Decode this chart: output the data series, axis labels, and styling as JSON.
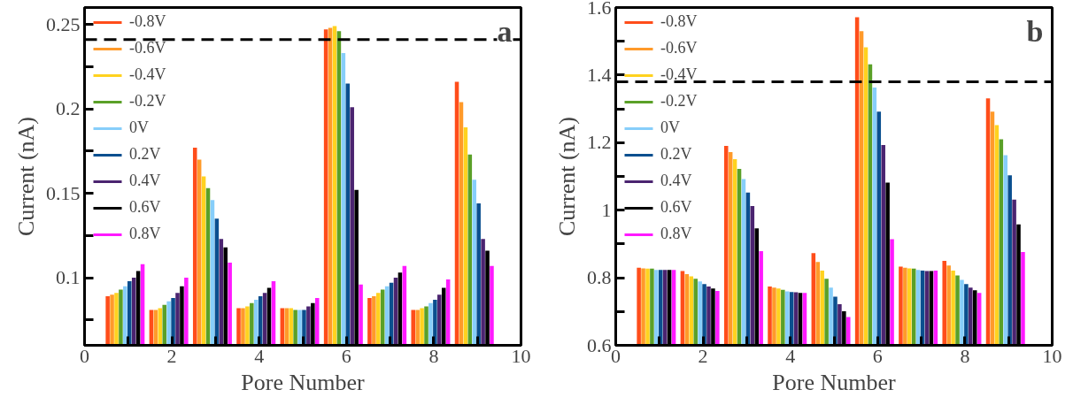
{
  "chart_data": [
    {
      "type": "bar",
      "xlabel": "Pore Number",
      "ylabel": "Current (nA)",
      "annotations": [
        "a"
      ],
      "legend": "top left",
      "x": [
        1,
        2,
        3,
        4,
        5,
        6,
        7,
        8,
        9
      ],
      "xlim": [
        0,
        10
      ],
      "ylim": [
        0.06,
        0.26
      ],
      "xticks": [
        0,
        {
          "value": 1,
          "label": null
        },
        2,
        {
          "value": 3,
          "label": null
        },
        4,
        {
          "value": 5,
          "label": null
        },
        6,
        {
          "value": 7,
          "label": null
        },
        8,
        {
          "value": 9,
          "label": null
        },
        10
      ],
      "yticks": [
        {
          "value": 0.075,
          "label": null
        },
        0.1,
        {
          "value": 0.125,
          "label": null
        },
        0.15,
        {
          "value": 0.175,
          "label": null
        },
        0.2,
        {
          "value": 0.225,
          "label": null
        },
        0.25
      ],
      "ref_lines": [
        {
          "axis": "y",
          "value": 0.241,
          "color": "#000000",
          "line_style": "dashed"
        }
      ],
      "series": [
        {
          "name": "-0.8V",
          "color": "#ff4d1a",
          "values": [
            0.089,
            0.081,
            0.177,
            0.082,
            0.082,
            0.247,
            0.088,
            0.081,
            0.216
          ]
        },
        {
          "name": "-0.6V",
          "color": "#ff9a2a",
          "values": [
            0.09,
            0.081,
            0.17,
            0.082,
            0.082,
            0.248,
            0.089,
            0.081,
            0.204
          ]
        },
        {
          "name": "-0.4V",
          "color": "#ffd21f",
          "values": [
            0.091,
            0.082,
            0.16,
            0.083,
            0.082,
            0.249,
            0.091,
            0.082,
            0.189
          ]
        },
        {
          "name": "-0.2V",
          "color": "#5aa028",
          "values": [
            0.093,
            0.084,
            0.153,
            0.085,
            0.081,
            0.246,
            0.093,
            0.083,
            0.173
          ]
        },
        {
          "name": "0V",
          "color": "#87cefa",
          "values": [
            0.095,
            0.086,
            0.146,
            0.087,
            0.081,
            0.233,
            0.095,
            0.085,
            0.158
          ]
        },
        {
          "name": "0.2V",
          "color": "#0a4f8f",
          "values": [
            0.098,
            0.088,
            0.135,
            0.089,
            0.081,
            0.215,
            0.097,
            0.087,
            0.144
          ]
        },
        {
          "name": "0.4V",
          "color": "#4b2470",
          "values": [
            0.1,
            0.091,
            0.123,
            0.091,
            0.083,
            0.201,
            0.1,
            0.09,
            0.123
          ]
        },
        {
          "name": "0.6V",
          "color": "#000000",
          "values": [
            0.104,
            0.095,
            0.118,
            0.094,
            0.085,
            0.152,
            0.103,
            0.094,
            0.116
          ]
        },
        {
          "name": "0.8V",
          "color": "#ff1aff",
          "values": [
            0.108,
            0.1,
            0.109,
            0.098,
            0.088,
            0.096,
            0.107,
            0.099,
            0.107
          ]
        }
      ]
    },
    {
      "type": "bar",
      "xlabel": "Pore Number",
      "ylabel": "Current (nA)",
      "annotations": [
        "b"
      ],
      "legend": "top left",
      "x": [
        1,
        2,
        3,
        4,
        5,
        6,
        7,
        8,
        9
      ],
      "xlim": [
        0,
        10
      ],
      "ylim": [
        0.6,
        1.6
      ],
      "xticks": [
        0,
        {
          "value": 1,
          "label": null
        },
        2,
        {
          "value": 3,
          "label": null
        },
        4,
        {
          "value": 5,
          "label": null
        },
        6,
        {
          "value": 7,
          "label": null
        },
        8,
        {
          "value": 9,
          "label": null
        },
        10
      ],
      "yticks": [
        0.6,
        {
          "value": 0.7,
          "label": null
        },
        0.8,
        {
          "value": 0.9,
          "label": null
        },
        1,
        {
          "value": 1.1,
          "label": null
        },
        1.2,
        {
          "value": 1.3,
          "label": null
        },
        1.4,
        {
          "value": 1.5,
          "label": null
        },
        1.6
      ],
      "ref_lines": [
        {
          "axis": "y",
          "value": 1.38,
          "color": "#000000",
          "line_style": "dashed"
        }
      ],
      "series": [
        {
          "name": "-0.8V",
          "color": "#ff4d1a",
          "values": [
            0.83,
            0.82,
            1.19,
            0.774,
            0.873,
            1.571,
            0.833,
            0.85,
            1.331
          ]
        },
        {
          "name": "-0.6V",
          "color": "#ff9a2a",
          "values": [
            0.828,
            0.811,
            1.172,
            0.771,
            0.847,
            1.53,
            0.83,
            0.836,
            1.292
          ]
        },
        {
          "name": "-0.4V",
          "color": "#ffd21f",
          "values": [
            0.827,
            0.804,
            1.151,
            0.768,
            0.821,
            1.482,
            0.828,
            0.821,
            1.252
          ]
        },
        {
          "name": "-0.2V",
          "color": "#5aa028",
          "values": [
            0.827,
            0.797,
            1.122,
            0.764,
            0.797,
            1.432,
            0.827,
            0.807,
            1.21
          ]
        },
        {
          "name": "0V",
          "color": "#87cefa",
          "values": [
            0.823,
            0.789,
            1.092,
            0.76,
            0.771,
            1.363,
            0.823,
            0.794,
            1.163
          ]
        },
        {
          "name": "0.2V",
          "color": "#0a4f8f",
          "values": [
            0.823,
            0.781,
            1.052,
            0.758,
            0.744,
            1.292,
            0.821,
            0.781,
            1.103
          ]
        },
        {
          "name": "0.4V",
          "color": "#4b2470",
          "values": [
            0.823,
            0.774,
            1.012,
            0.757,
            0.722,
            1.193,
            0.82,
            0.771,
            1.031
          ]
        },
        {
          "name": "0.6V",
          "color": "#000000",
          "values": [
            0.823,
            0.768,
            0.946,
            0.755,
            0.701,
            1.082,
            0.82,
            0.763,
            0.958
          ]
        },
        {
          "name": "0.8V",
          "color": "#ff1aff",
          "values": [
            0.823,
            0.761,
            0.879,
            0.755,
            0.684,
            0.914,
            0.821,
            0.755,
            0.876
          ]
        }
      ]
    }
  ]
}
